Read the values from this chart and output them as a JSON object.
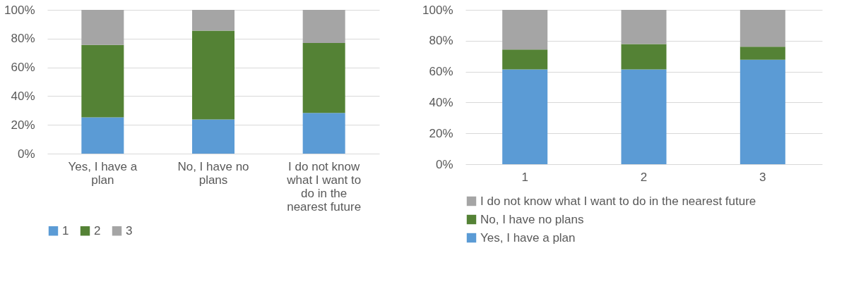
{
  "chart_data": [
    {
      "type": "bar",
      "stacked": true,
      "categories": [
        "Yes, I have a plan",
        "No, I have no plans",
        "I do not know what I want to do in the nearest future"
      ],
      "series": [
        {
          "name": "1",
          "color": "#5b9bd5",
          "values": [
            25.3,
            23.8,
            28.3
          ]
        },
        {
          "name": "2",
          "color": "#548235",
          "values": [
            50.3,
            61.8,
            48.6
          ]
        },
        {
          "name": "3",
          "color": "#a5a5a5",
          "values": [
            24.4,
            14.4,
            23.1
          ]
        }
      ],
      "ylim": [
        0,
        100
      ],
      "yticks": [
        {
          "value": 0,
          "label": "0%"
        },
        {
          "value": 20,
          "label": "20%"
        },
        {
          "value": 40,
          "label": "40%"
        },
        {
          "value": 60,
          "label": "60%"
        },
        {
          "value": 80,
          "label": "80%"
        },
        {
          "value": 100,
          "label": "100%"
        }
      ],
      "grid": "y",
      "legend": "bottom"
    },
    {
      "type": "bar",
      "stacked": true,
      "categories": [
        "1",
        "2",
        "3"
      ],
      "series": [
        {
          "name": "Yes, I have a plan",
          "color": "#5b9bd5",
          "values": [
            61.4,
            61.4,
            67.7
          ]
        },
        {
          "name": "No, I have no plans",
          "color": "#548235",
          "values": [
            12.9,
            16.5,
            8.4
          ]
        },
        {
          "name": "I do not know what I want to do in the nearest future",
          "color": "#a5a5a5",
          "values": [
            25.7,
            22.1,
            23.9
          ]
        }
      ],
      "ylim": [
        0,
        100
      ],
      "yticks": [
        {
          "value": 0,
          "label": "0%"
        },
        {
          "value": 20,
          "label": "20%"
        },
        {
          "value": 40,
          "label": "40%"
        },
        {
          "value": 60,
          "label": "60%"
        },
        {
          "value": 80,
          "label": "80%"
        },
        {
          "value": 100,
          "label": "100%"
        }
      ],
      "grid": "y",
      "legend": "bottom"
    }
  ]
}
